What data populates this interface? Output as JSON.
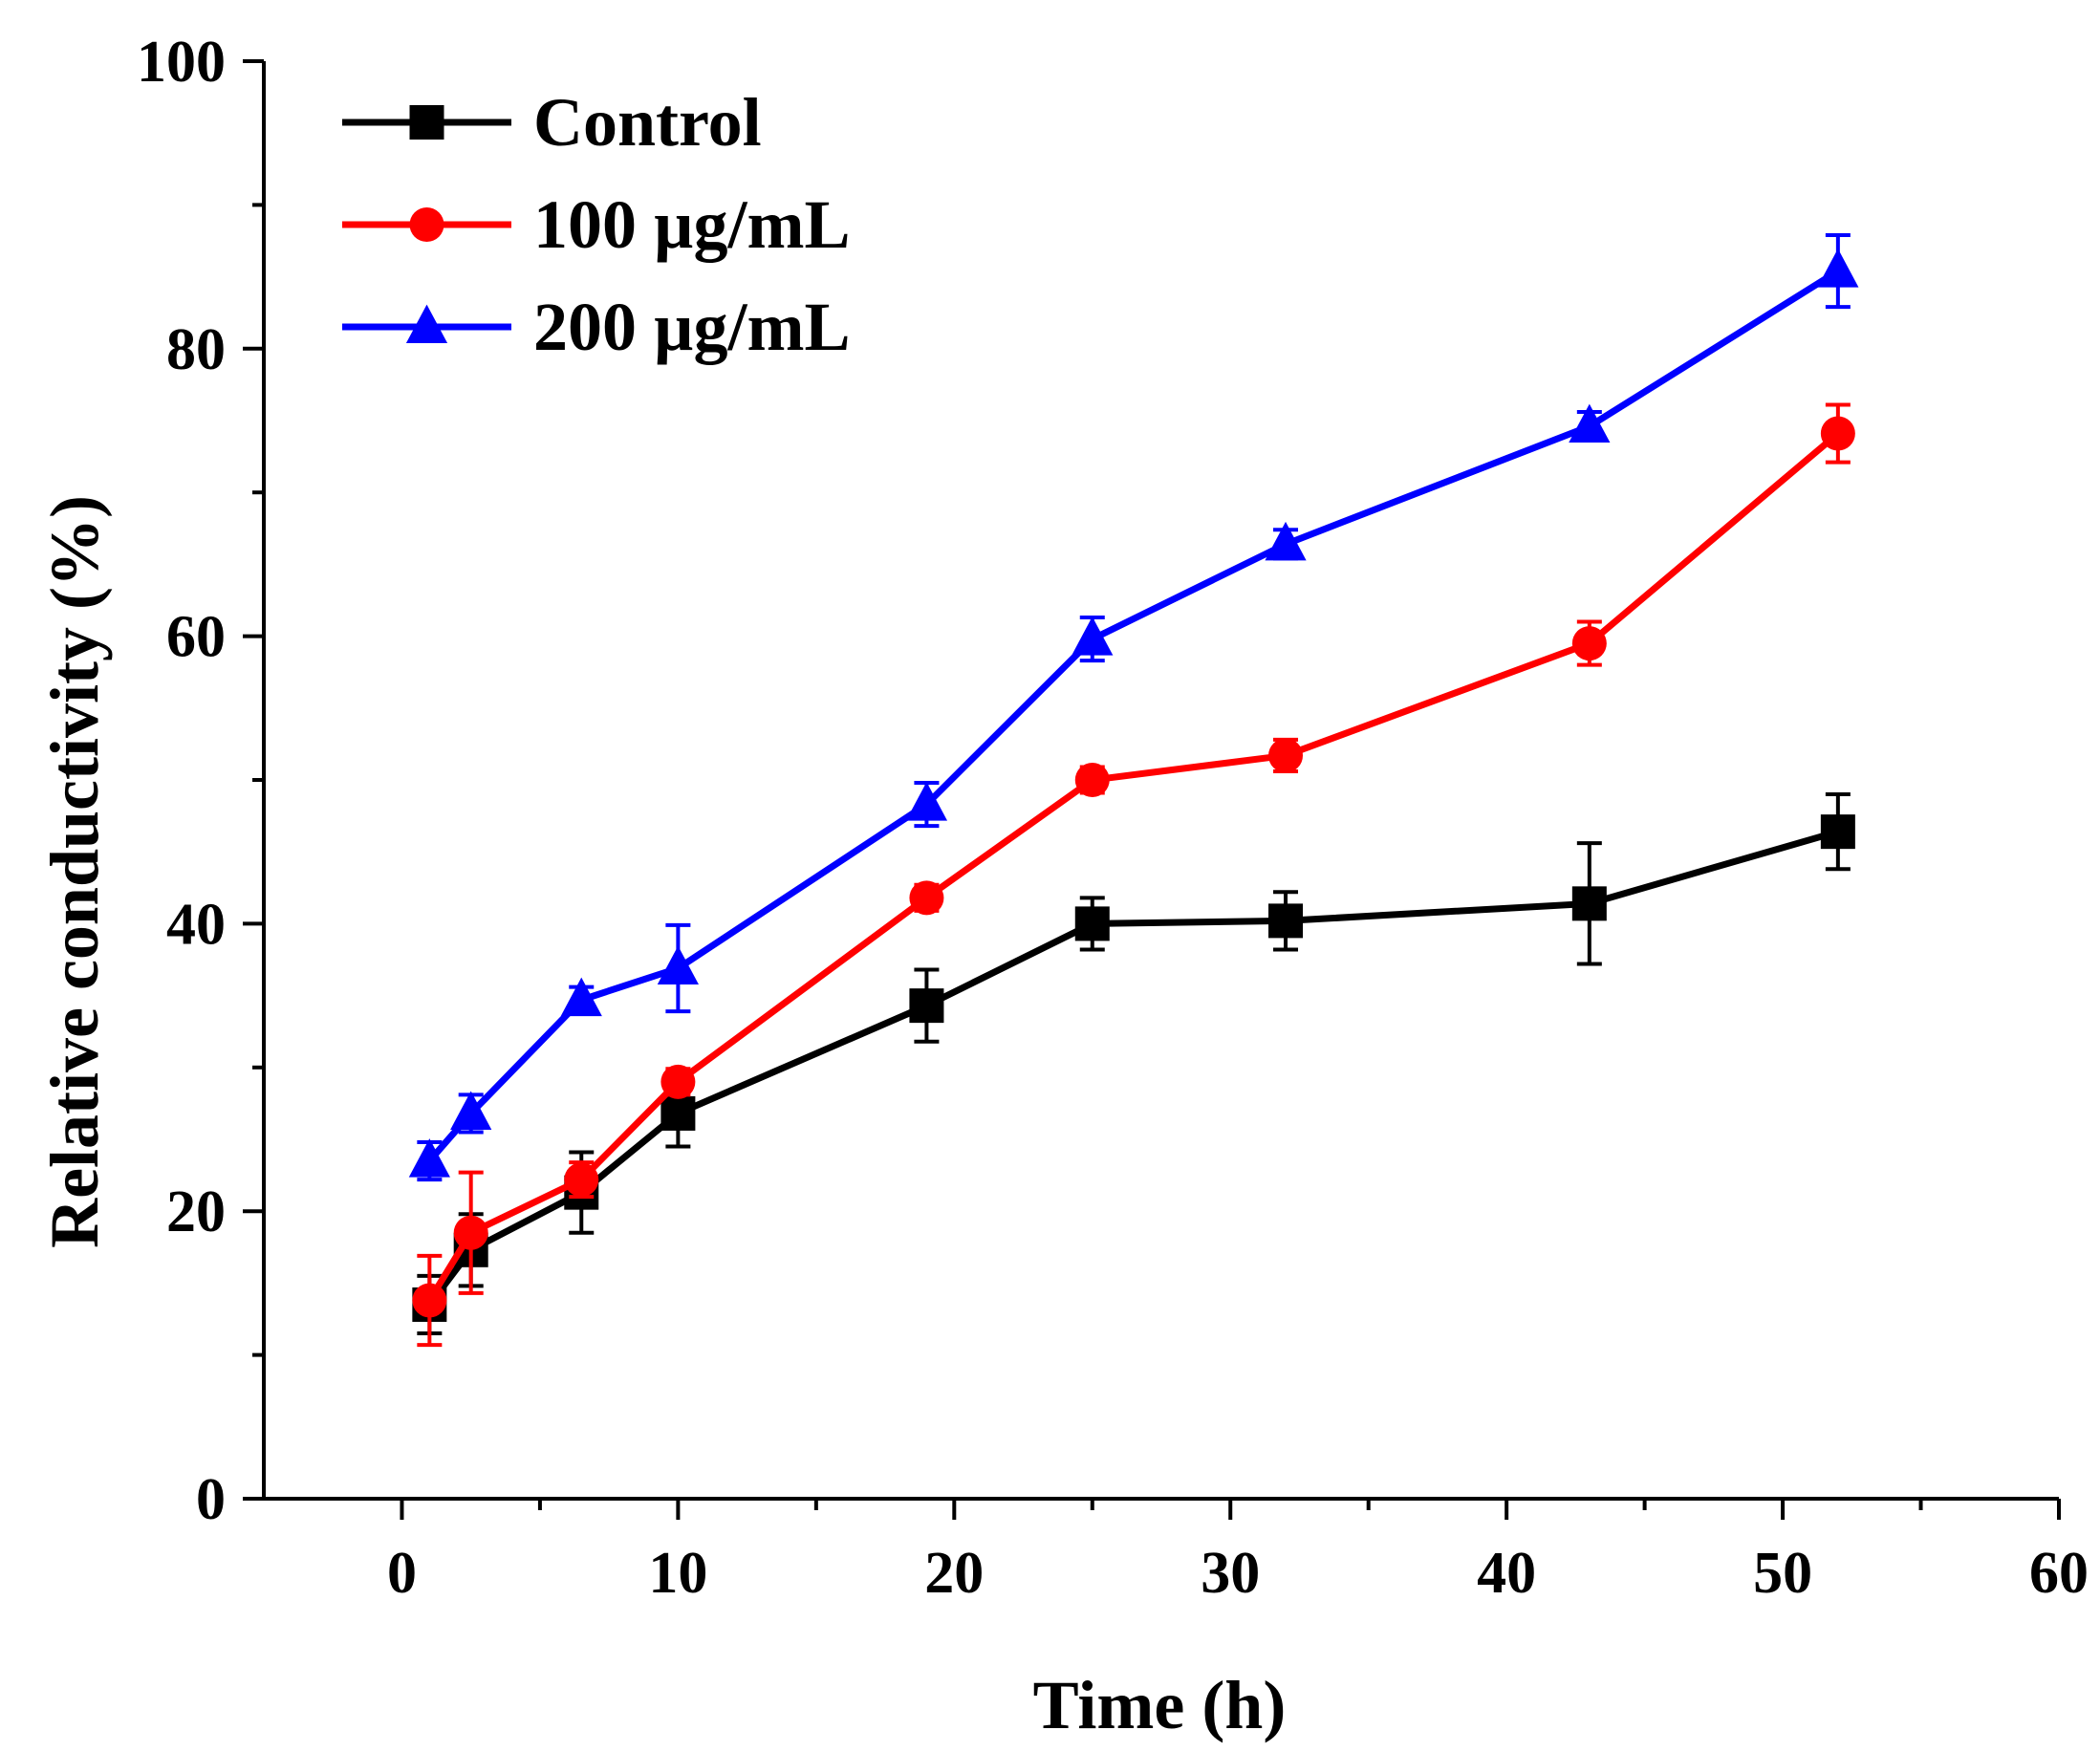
{
  "chart_data": {
    "type": "line",
    "title": "",
    "xlabel": "Time (h)",
    "ylabel": "Relative conductivity (%)",
    "xlim": [
      -5,
      60
    ],
    "ylim": [
      0,
      100
    ],
    "x_major_ticks": [
      0,
      10,
      20,
      30,
      40,
      50,
      60
    ],
    "x_tick_labels": [
      "0",
      "10",
      "20",
      "30",
      "40",
      "50",
      "60"
    ],
    "y_major_ticks": [
      0,
      20,
      40,
      60,
      80,
      100
    ],
    "y_tick_labels": [
      "0",
      "20",
      "40",
      "60",
      "80",
      "100"
    ],
    "grid": false,
    "legend_position": "top-left",
    "series": [
      {
        "name": "Control",
        "color": "#000000",
        "marker": "square",
        "x": [
          1,
          2.5,
          6.5,
          10,
          19,
          25,
          32,
          43,
          52
        ],
        "y": [
          13.5,
          17.3,
          21.3,
          26.8,
          34.3,
          40.0,
          40.2,
          41.4,
          46.4
        ],
        "error": [
          2.0,
          2.5,
          2.8,
          2.3,
          2.5,
          1.8,
          2.0,
          4.2,
          2.6
        ]
      },
      {
        "name": "100 µg/mL",
        "color": "#ff0000",
        "marker": "circle",
        "x": [
          1,
          2.5,
          6.5,
          10,
          19,
          25,
          32,
          43,
          52
        ],
        "y": [
          13.8,
          18.5,
          22.2,
          29.0,
          41.8,
          50.0,
          51.7,
          59.5,
          74.1
        ],
        "error": [
          3.1,
          4.2,
          1.2,
          0.9,
          0.9,
          0.9,
          1.1,
          1.5,
          2.0
        ]
      },
      {
        "name": "200 µg/mL",
        "color": "#0000ff",
        "marker": "triangle",
        "x": [
          1,
          2.5,
          6.5,
          10,
          19,
          25,
          32,
          43,
          52
        ],
        "y": [
          23.5,
          26.8,
          34.7,
          36.9,
          48.3,
          59.8,
          66.4,
          74.6,
          85.4
        ],
        "error": [
          1.3,
          1.3,
          0.9,
          3.0,
          1.5,
          1.5,
          1.0,
          1.0,
          2.5
        ]
      }
    ]
  }
}
